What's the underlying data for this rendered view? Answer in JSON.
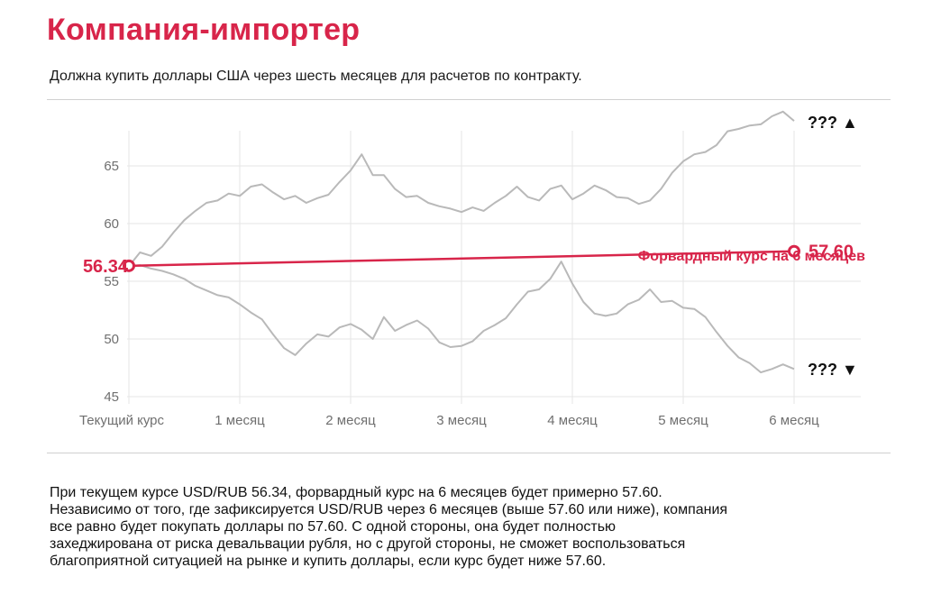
{
  "header": {
    "title": "Компания-импортер",
    "subtitle": "Должна купить доллары США через шесть месяцев для расчетов по контракту."
  },
  "chart_data": {
    "type": "line",
    "categories": [
      "Текущий курс",
      "1 месяц",
      "2 месяц",
      "3 месяц",
      "4 месяц",
      "5 месяц",
      "6 месяц"
    ],
    "y_ticks": [
      45,
      50,
      55,
      60,
      65
    ],
    "ylim": [
      45,
      68.5
    ],
    "xlim": [
      0,
      6
    ],
    "grid": true,
    "forward": {
      "start_value": 56.34,
      "end_value": 57.6,
      "start_label": "56.34",
      "end_label": "57.60",
      "label": "Форвардный курс на 6 месяцев"
    },
    "upper_marker": "??? ▲",
    "lower_marker": "??? ▼",
    "series": [
      {
        "x": [
          0,
          0.1,
          0.2,
          0.3,
          0.4,
          0.5,
          0.6,
          0.7,
          0.8,
          0.9,
          1.0,
          1.1,
          1.2,
          1.3,
          1.4,
          1.5,
          1.6,
          1.7,
          1.8,
          1.9,
          2.0,
          2.1,
          2.2,
          2.3,
          2.4,
          2.5,
          2.6,
          2.7,
          2.8,
          2.9,
          3.0,
          3.1,
          3.2,
          3.3,
          3.4,
          3.5,
          3.6,
          3.7,
          3.8,
          3.9,
          4.0,
          4.1,
          4.2,
          4.3,
          4.4,
          4.5,
          4.6,
          4.7,
          4.8,
          4.9,
          5.0,
          5.1,
          5.2,
          5.3,
          5.4,
          5.5,
          5.6,
          5.7,
          5.8,
          5.9,
          6.0
        ],
        "values": [
          56.3,
          57.5,
          57.2,
          58.0,
          59.2,
          60.3,
          61.1,
          61.8,
          62.0,
          62.6,
          62.4,
          63.2,
          63.4,
          62.7,
          62.1,
          62.4,
          61.8,
          62.2,
          62.5,
          63.6,
          64.6,
          66.0,
          64.2,
          64.2,
          63.0,
          62.3,
          62.4,
          61.8,
          61.5,
          61.3,
          61.0,
          61.4,
          61.1,
          61.8,
          62.4,
          63.2,
          62.3,
          62.0,
          63.0,
          63.3,
          62.1,
          62.6,
          63.3,
          62.9,
          62.3,
          62.2,
          61.7,
          62.0,
          63.0,
          64.4,
          65.4,
          66.0,
          66.2,
          66.8,
          68.0,
          68.2,
          68.5,
          68.6,
          69.3,
          69.7,
          68.9
        ]
      },
      {
        "x": [
          0,
          0.1,
          0.2,
          0.3,
          0.4,
          0.5,
          0.6,
          0.7,
          0.8,
          0.9,
          1.0,
          1.1,
          1.2,
          1.3,
          1.4,
          1.5,
          1.6,
          1.7,
          1.8,
          1.9,
          2.0,
          2.1,
          2.2,
          2.3,
          2.4,
          2.5,
          2.6,
          2.7,
          2.8,
          2.9,
          3.0,
          3.1,
          3.2,
          3.3,
          3.4,
          3.5,
          3.6,
          3.7,
          3.8,
          3.9,
          4.0,
          4.1,
          4.2,
          4.3,
          4.4,
          4.5,
          4.6,
          4.7,
          4.8,
          4.9,
          5.0,
          5.1,
          5.2,
          5.3,
          5.4,
          5.5,
          5.6,
          5.7,
          5.8,
          5.9,
          6.0
        ],
        "values": [
          56.3,
          56.4,
          56.1,
          55.9,
          55.6,
          55.2,
          54.6,
          54.2,
          53.8,
          53.6,
          53.0,
          52.3,
          51.7,
          50.4,
          49.2,
          48.6,
          49.6,
          50.4,
          50.2,
          51.0,
          51.3,
          50.8,
          50.0,
          51.9,
          50.7,
          51.2,
          51.6,
          50.9,
          49.7,
          49.3,
          49.4,
          49.8,
          50.7,
          51.2,
          51.8,
          53.0,
          54.1,
          54.3,
          55.2,
          56.7,
          54.8,
          53.2,
          52.2,
          52.0,
          52.2,
          53.0,
          53.4,
          54.3,
          53.2,
          53.3,
          52.7,
          52.6,
          51.9,
          50.6,
          49.4,
          48.4,
          47.9,
          47.1,
          47.4,
          47.8,
          47.4
        ]
      }
    ]
  },
  "explanation": "При текущем курсе USD/RUB 56.34, форвардный курс на 6 месяцев будет примерно 57.60.\nНезависимо от того, где зафиксируется USD/RUB через 6 месяцев (выше 57.60 или ниже), компания\nвсе равно будет покупать  доллары по 57.60. С одной стороны, она будет полностью\nзахеджирована от риска девальвации рубля, но с другой стороны, не сможет воспользоваться\nблагоприятной ситуацией на рынке и купить доллары, если курс будет ниже 57.60.",
  "colors": {
    "accent": "#d8254a",
    "series": "#b9b9b9",
    "grid": "#e6e6e6",
    "text": "#1a1a1a"
  }
}
